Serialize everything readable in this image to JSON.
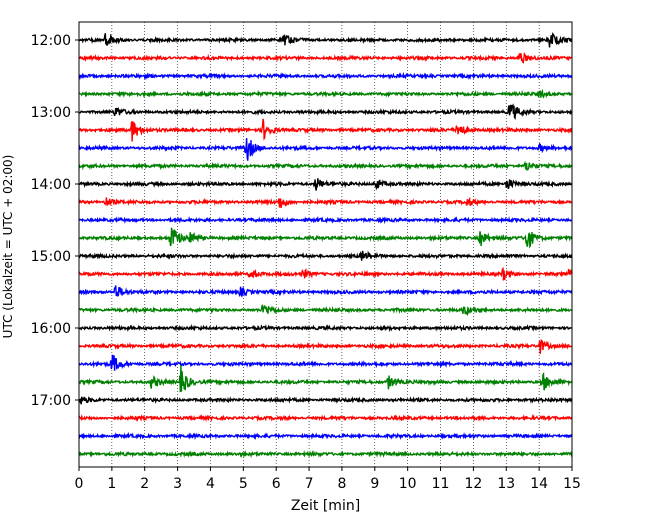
{
  "chart_data": {
    "type": "line",
    "title": "",
    "xlabel": "Zeit  [min]",
    "ylabel": "UTC (Lokalzeit = UTC + 02:00)",
    "xlim": [
      0,
      15
    ],
    "x_ticks": [
      "0",
      "1",
      "2",
      "3",
      "4",
      "5",
      "6",
      "7",
      "8",
      "9",
      "10",
      "11",
      "12",
      "13",
      "14",
      "15"
    ],
    "y_ticks": [
      "12:00",
      "13:00",
      "14:00",
      "15:00",
      "16:00",
      "17:00"
    ],
    "grid": "vertical dotted",
    "trace_colors": [
      "#000000",
      "#ff0000",
      "#0000ff",
      "#008000"
    ],
    "series": [
      {
        "time": "12:00",
        "color": "#000000",
        "events": [
          {
            "t": 0.8,
            "amp": 0.6
          },
          {
            "t": 6.2,
            "amp": 0.5
          },
          {
            "t": 14.3,
            "amp": 0.8
          }
        ]
      },
      {
        "time": "12:15",
        "color": "#ff0000",
        "events": [
          {
            "t": 13.4,
            "amp": 0.6
          }
        ]
      },
      {
        "time": "12:30",
        "color": "#0000ff",
        "events": []
      },
      {
        "time": "12:45",
        "color": "#008000",
        "events": [
          {
            "t": 14.0,
            "amp": 0.3
          }
        ]
      },
      {
        "time": "13:00",
        "color": "#000000",
        "events": [
          {
            "t": 1.1,
            "amp": 0.4
          },
          {
            "t": 13.1,
            "amp": 1.0
          }
        ]
      },
      {
        "time": "13:15",
        "color": "#ff0000",
        "events": [
          {
            "t": 1.6,
            "amp": 1.0
          },
          {
            "t": 5.6,
            "amp": 0.9
          },
          {
            "t": 11.5,
            "amp": 0.8
          }
        ]
      },
      {
        "time": "13:30",
        "color": "#0000ff",
        "events": [
          {
            "t": 5.1,
            "amp": 1.2
          },
          {
            "t": 14.0,
            "amp": 0.3
          }
        ]
      },
      {
        "time": "13:45",
        "color": "#008000",
        "events": [
          {
            "t": 13.6,
            "amp": 0.5
          }
        ]
      },
      {
        "time": "14:00",
        "color": "#000000",
        "events": [
          {
            "t": 7.2,
            "amp": 0.6
          },
          {
            "t": 9.0,
            "amp": 0.5
          },
          {
            "t": 13.0,
            "amp": 0.6
          }
        ]
      },
      {
        "time": "14:15",
        "color": "#ff0000",
        "events": [
          {
            "t": 0.8,
            "amp": 0.4
          },
          {
            "t": 6.1,
            "amp": 0.6
          },
          {
            "t": 11.8,
            "amp": 0.3
          }
        ]
      },
      {
        "time": "14:30",
        "color": "#0000ff",
        "events": []
      },
      {
        "time": "14:45",
        "color": "#008000",
        "events": [
          {
            "t": 2.8,
            "amp": 1.2
          },
          {
            "t": 3.4,
            "amp": 0.6
          },
          {
            "t": 12.2,
            "amp": 0.7
          },
          {
            "t": 13.6,
            "amp": 1.2
          }
        ]
      },
      {
        "time": "15:00",
        "color": "#000000",
        "events": [
          {
            "t": 8.6,
            "amp": 0.4
          }
        ]
      },
      {
        "time": "15:15",
        "color": "#ff0000",
        "events": [
          {
            "t": 5.2,
            "amp": 0.5
          },
          {
            "t": 6.8,
            "amp": 0.4
          },
          {
            "t": 12.9,
            "amp": 0.5
          },
          {
            "t": 14.9,
            "amp": 0.5
          }
        ]
      },
      {
        "time": "15:30",
        "color": "#0000ff",
        "events": [
          {
            "t": 1.1,
            "amp": 0.7
          },
          {
            "t": 4.9,
            "amp": 0.4
          }
        ]
      },
      {
        "time": "15:45",
        "color": "#008000",
        "events": [
          {
            "t": 5.6,
            "amp": 0.6
          },
          {
            "t": 11.7,
            "amp": 0.4
          }
        ]
      },
      {
        "time": "16:00",
        "color": "#000000",
        "events": []
      },
      {
        "time": "16:15",
        "color": "#ff0000",
        "events": [
          {
            "t": 14.0,
            "amp": 0.7
          }
        ]
      },
      {
        "time": "16:30",
        "color": "#0000ff",
        "events": [
          {
            "t": 1.0,
            "amp": 0.9
          }
        ]
      },
      {
        "time": "16:45",
        "color": "#008000",
        "events": [
          {
            "t": 3.1,
            "amp": 1.3
          },
          {
            "t": 2.2,
            "amp": 0.5
          },
          {
            "t": 9.4,
            "amp": 0.6
          },
          {
            "t": 14.1,
            "amp": 0.8
          }
        ]
      },
      {
        "time": "17:00",
        "color": "#000000",
        "events": [
          {
            "t": 0.0,
            "amp": 0.4
          }
        ]
      },
      {
        "time": "17:15",
        "color": "#ff0000",
        "events": []
      },
      {
        "time": "17:30",
        "color": "#0000ff",
        "events": []
      },
      {
        "time": "17:45",
        "color": "#008000",
        "events": []
      }
    ]
  }
}
